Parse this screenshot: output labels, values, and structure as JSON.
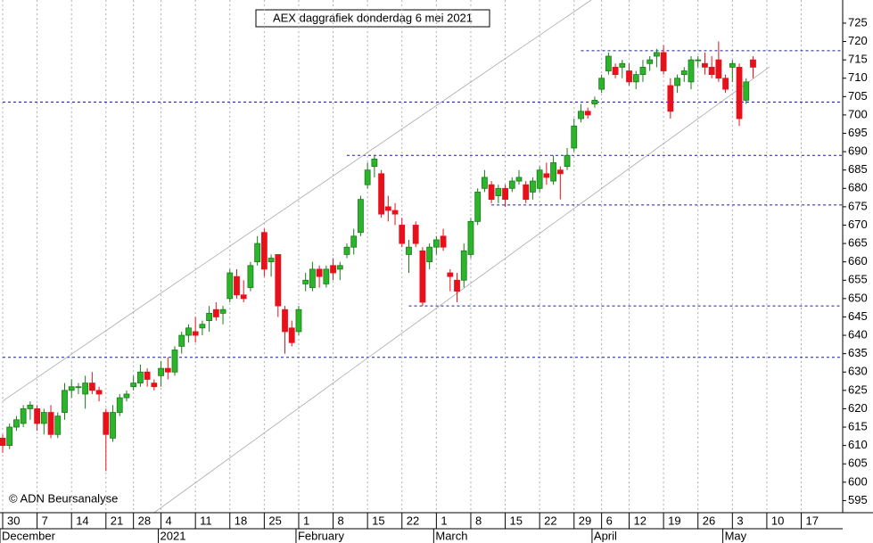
{
  "chart_data": {
    "type": "candlestick",
    "title": "AEX daggrafiek donderdag 6 mei 2021",
    "copyright": "© ADN Beursanalyse",
    "categories": [
      "30",
      null,
      null,
      null,
      null,
      "7",
      null,
      null,
      null,
      null,
      "14",
      null,
      null,
      null,
      null,
      "21",
      null,
      null,
      null,
      "28",
      null,
      null,
      null,
      "4",
      null,
      null,
      null,
      null,
      "11",
      null,
      null,
      null,
      null,
      "18",
      null,
      null,
      null,
      null,
      "25",
      null,
      null,
      null,
      null,
      "1",
      null,
      null,
      null,
      null,
      "8",
      null,
      null,
      null,
      null,
      "15",
      null,
      null,
      null,
      null,
      "22",
      null,
      null,
      null,
      null,
      "1",
      null,
      null,
      null,
      null,
      "8",
      null,
      null,
      null,
      null,
      "15",
      null,
      null,
      null,
      null,
      "22",
      null,
      null,
      null,
      null,
      "29",
      null,
      null,
      null,
      "6",
      null,
      null,
      null,
      "12",
      null,
      null,
      null,
      null,
      "19",
      null,
      null,
      null,
      null,
      "26",
      null,
      null,
      null,
      null,
      "3",
      null,
      null,
      null,
      null,
      "10",
      null,
      null,
      null,
      null,
      "17",
      null,
      null,
      null,
      null
    ],
    "month_categories": [
      "December",
      null,
      null,
      null,
      null,
      null,
      null,
      null,
      null,
      null,
      null,
      null,
      null,
      null,
      null,
      null,
      null,
      null,
      null,
      null,
      null,
      null,
      null,
      "2021",
      null,
      null,
      null,
      null,
      null,
      null,
      null,
      null,
      null,
      null,
      null,
      null,
      null,
      null,
      null,
      null,
      null,
      null,
      null,
      "February",
      null,
      null,
      null,
      null,
      null,
      null,
      null,
      null,
      null,
      null,
      null,
      null,
      null,
      null,
      null,
      null,
      null,
      null,
      null,
      "March",
      null,
      null,
      null,
      null,
      null,
      null,
      null,
      null,
      null,
      null,
      null,
      null,
      null,
      null,
      null,
      null,
      null,
      null,
      null,
      null,
      null,
      null,
      "April",
      null,
      null,
      null,
      null,
      null,
      null,
      null,
      null,
      null,
      null,
      null,
      null,
      null,
      null,
      null,
      null,
      null,
      null,
      "May",
      null,
      null,
      null,
      null,
      null,
      null,
      null,
      null,
      null,
      null,
      null,
      null,
      null,
      null
    ],
    "open": [
      612,
      610,
      615,
      616,
      620,
      620,
      616,
      619,
      613,
      619,
      625,
      626,
      624,
      627,
      625,
      619,
      612,
      619,
      623,
      626,
      627,
      630,
      627,
      629,
      631,
      630,
      637,
      640,
      641,
      642,
      644,
      647,
      646,
      650,
      656,
      651,
      653,
      660,
      668,
      660,
      662,
      647,
      642,
      641,
      654,
      653,
      658,
      654,
      659,
      658,
      662,
      664,
      668,
      681,
      686,
      684,
      675,
      674,
      670,
      662,
      670,
      663,
      660,
      664,
      667,
      657,
      655,
      655,
      662,
      671,
      680,
      681,
      678,
      680,
      680,
      682,
      681,
      679,
      680,
      684,
      682,
      685,
      686,
      691,
      699,
      701,
      703,
      707,
      712,
      713,
      713,
      712,
      709,
      711,
      714,
      716,
      717,
      708,
      708,
      711,
      709,
      715,
      714,
      713,
      715,
      710,
      713,
      713,
      704,
      715,
      null,
      null,
      null,
      null,
      null,
      null,
      null,
      null,
      null,
      null,
      null
    ],
    "high": [
      613,
      616,
      618,
      621,
      622,
      621,
      620,
      621,
      619,
      627,
      628,
      627,
      629,
      630,
      626,
      620,
      621,
      624,
      625,
      629,
      632,
      631,
      628,
      633,
      634,
      637,
      641,
      643,
      645,
      644,
      648,
      649,
      648,
      658,
      658,
      655,
      660,
      667,
      669,
      662,
      662,
      648,
      644,
      648,
      657,
      660,
      659,
      659,
      661,
      660,
      665,
      669,
      678,
      687,
      689,
      685,
      678,
      676,
      672,
      666,
      671,
      664,
      665,
      667,
      669,
      658,
      657,
      665,
      672,
      680,
      685,
      682,
      681,
      681,
      683,
      685,
      682,
      683,
      686,
      687,
      689,
      686,
      691,
      699,
      703,
      702,
      705,
      711,
      717,
      714,
      715,
      714,
      712,
      715,
      716,
      718,
      719,
      710,
      711,
      713,
      716,
      716,
      717,
      716,
      720,
      711,
      715,
      714,
      710,
      716,
      null,
      null,
      null,
      null,
      null,
      null,
      null,
      null,
      null,
      null,
      null
    ],
    "low": [
      608,
      609,
      614,
      615,
      617,
      614,
      613,
      612,
      612,
      617,
      623,
      624,
      620,
      624,
      622,
      603,
      611,
      618,
      622,
      625,
      626,
      626,
      625,
      626,
      628,
      629,
      635,
      638,
      638,
      640,
      641,
      644,
      643,
      649,
      650,
      649,
      652,
      659,
      656,
      656,
      645,
      635,
      637,
      640,
      652,
      652,
      653,
      653,
      655,
      655,
      661,
      662,
      667,
      680,
      683,
      672,
      671,
      670,
      664,
      657,
      664,
      648,
      658,
      662,
      663,
      652,
      649,
      653,
      661,
      670,
      679,
      676,
      676,
      675,
      679,
      681,
      676,
      677,
      679,
      681,
      681,
      677,
      685,
      690,
      698,
      699,
      702,
      706,
      711,
      710,
      710,
      708,
      707,
      709,
      712,
      713,
      711,
      699,
      706,
      709,
      707,
      713,
      711,
      710,
      709,
      706,
      709,
      697,
      703,
      710,
      null,
      null,
      null,
      null,
      null,
      null,
      null,
      null,
      null,
      null,
      null
    ],
    "close": [
      610,
      615,
      617,
      620,
      621,
      616,
      619,
      613,
      618,
      625,
      626,
      626,
      627,
      625,
      624,
      613,
      619,
      623,
      624,
      627,
      630,
      628,
      626,
      631,
      630,
      636,
      640,
      642,
      640,
      643,
      646,
      645,
      647,
      657,
      651,
      650,
      659,
      665,
      658,
      661,
      648,
      641,
      638,
      647,
      655,
      658,
      656,
      658,
      657,
      659,
      664,
      667,
      677,
      685,
      688,
      673,
      674,
      673,
      665,
      664,
      665,
      649,
      664,
      666,
      664,
      656,
      652,
      663,
      671,
      679,
      683,
      677,
      680,
      677,
      682,
      683,
      677,
      682,
      685,
      683,
      687,
      684,
      689,
      697,
      701,
      700,
      704,
      710,
      716,
      711,
      714,
      709,
      711,
      713,
      715,
      717,
      712,
      701,
      710,
      712,
      715,
      715,
      713,
      711,
      710,
      707,
      714,
      699,
      709,
      713,
      null,
      null,
      null,
      null,
      null,
      null,
      null,
      null,
      null,
      null,
      null
    ],
    "up_color": "#2bb52b",
    "down_color": "#e8101a",
    "ylim": [
      591.7,
      731.3
    ],
    "yticks": [
      595,
      600,
      605,
      610,
      615,
      620,
      625,
      630,
      635,
      640,
      645,
      650,
      655,
      660,
      665,
      670,
      675,
      680,
      685,
      690,
      695,
      700,
      705,
      710,
      715,
      720,
      725
    ],
    "levels": [
      {
        "value": 634,
        "from": 0
      },
      {
        "value": 648,
        "from": 59
      },
      {
        "value": 675.5,
        "from": 71
      },
      {
        "value": 689,
        "from": 50
      },
      {
        "value": 703.5,
        "from": 0
      },
      {
        "value": 717.5,
        "from": 84
      }
    ],
    "level_color": "#1a1aa0",
    "trendlines": [
      {
        "x": [
          0,
          85.5
        ],
        "y": [
          622.1,
          731.3
        ]
      },
      {
        "x": [
          22,
          111.4
        ],
        "y": [
          591.7,
          713.1
        ]
      }
    ],
    "trendline_color": "#aaaaaa",
    "grid": true
  }
}
